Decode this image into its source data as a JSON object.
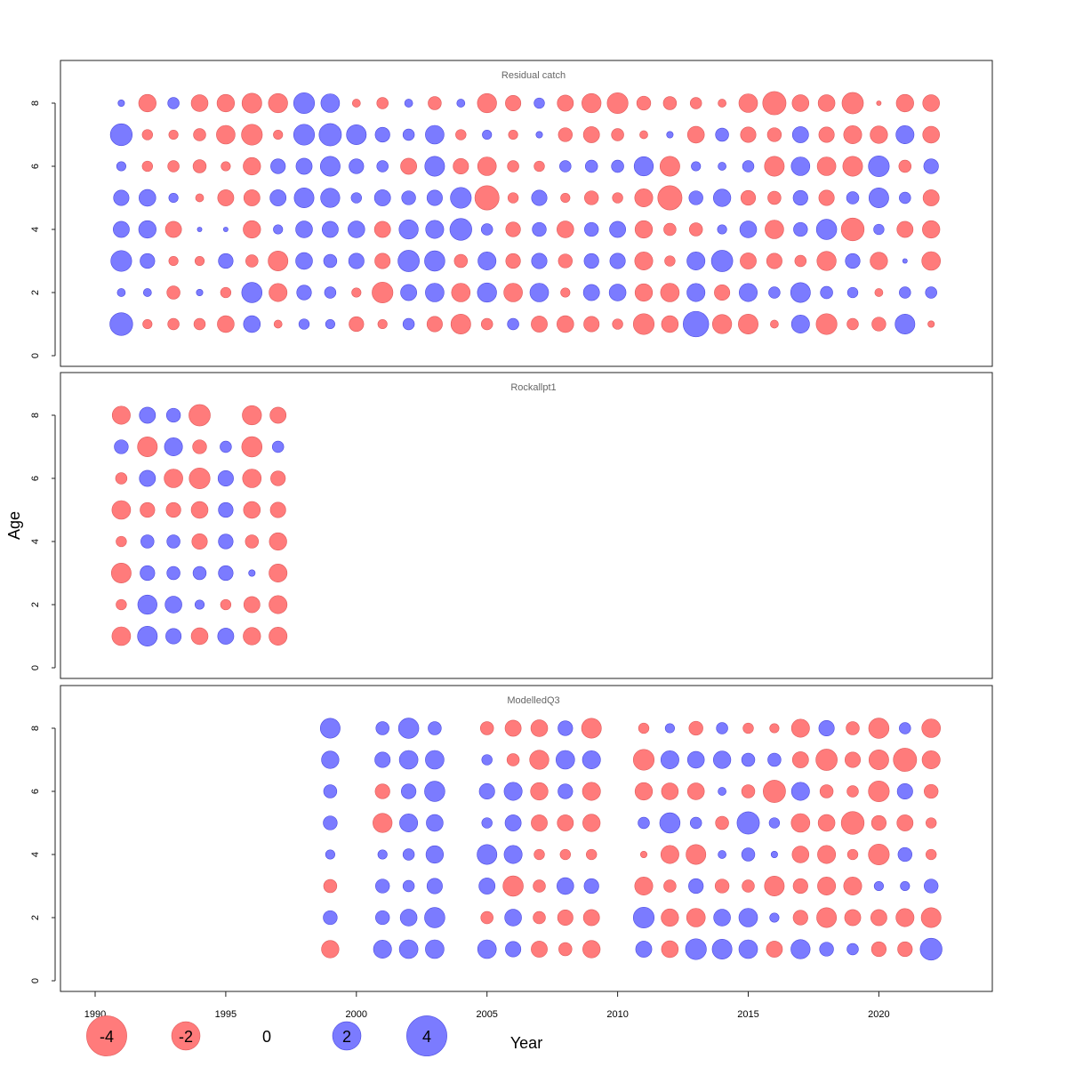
{
  "chart_data": {
    "type": "scatter",
    "subtype": "bubble",
    "xlabel": "Year",
    "ylabel": "Age",
    "xlim": [
      1989,
      2024
    ],
    "ylim": [
      0,
      9
    ],
    "x_ticks": [
      1990,
      1995,
      2000,
      2005,
      2010,
      2015,
      2020
    ],
    "y_ticks": [
      0,
      2,
      4,
      6,
      8
    ],
    "colors": {
      "positive": "#7b7bff",
      "negative": "#ff7b7b",
      "positive_stroke": "#4a4ae0",
      "negative_stroke": "#e05a5a"
    },
    "legend": {
      "position": "bottom",
      "items": [
        {
          "label": "-4",
          "value": -4
        },
        {
          "label": "-2",
          "value": -2
        },
        {
          "label": "0",
          "value": 0
        },
        {
          "label": "2",
          "value": 2
        },
        {
          "label": "4",
          "value": 4
        }
      ]
    },
    "panels": [
      {
        "title": "Residual catch",
        "years": [
          1991,
          1992,
          1993,
          1994,
          1995,
          1996,
          1997,
          1998,
          1999,
          2000,
          2001,
          2002,
          2003,
          2004,
          2005,
          2006,
          2007,
          2008,
          2009,
          2010,
          2011,
          2012,
          2013,
          2014,
          2015,
          2016,
          2017,
          2018,
          2019,
          2020,
          2021,
          2022
        ],
        "ages": [
          1,
          2,
          3,
          4,
          5,
          6,
          7,
          8
        ],
        "residuals": [
          [
            2.4,
            0.3,
            2.0,
            1.2,
            1.1,
            0.4,
            2.2,
            0.2
          ],
          [
            -0.4,
            0.3,
            1.0,
            1.4,
            1.3,
            -0.5,
            -0.5,
            -1.4
          ],
          [
            -0.6,
            -0.8,
            -0.4,
            -1.2,
            0.4,
            -0.6,
            -0.4,
            0.6
          ],
          [
            -0.6,
            0.2,
            -0.4,
            0.1,
            -0.3,
            -0.8,
            -0.7,
            -1.3
          ],
          [
            -1.3,
            -0.5,
            1.0,
            0.1,
            -1.2,
            -0.4,
            -1.6,
            -1.4
          ],
          [
            1.3,
            1.9,
            -0.7,
            -1.4,
            -1.2,
            -1.4,
            -2.0,
            -1.8
          ],
          [
            -0.3,
            -1.5,
            -1.8,
            0.4,
            1.2,
            1.0,
            -0.4,
            -1.7
          ],
          [
            0.5,
            1.0,
            1.3,
            1.3,
            1.8,
            1.2,
            2.0,
            2.0
          ],
          [
            0.4,
            0.6,
            0.8,
            1.2,
            1.7,
            1.8,
            2.3,
            1.6
          ],
          [
            -1.0,
            -0.4,
            1.1,
            1.3,
            0.5,
            1.0,
            1.8,
            -0.3
          ],
          [
            -0.4,
            -2.0,
            -1.1,
            -1.2,
            1.2,
            0.6,
            1.0,
            -0.6
          ],
          [
            0.6,
            1.2,
            2.1,
            1.7,
            0.9,
            -1.2,
            0.6,
            0.3
          ],
          [
            -1.1,
            1.6,
            1.9,
            1.5,
            1.1,
            1.8,
            1.6,
            -0.8
          ],
          [
            -1.8,
            -1.6,
            -0.8,
            2.2,
            2.0,
            -1.1,
            -0.5,
            0.3
          ],
          [
            -0.6,
            1.7,
            1.5,
            0.6,
            -2.7,
            -1.6,
            0.4,
            -1.7
          ],
          [
            0.6,
            -1.6,
            -1.0,
            -1.0,
            -0.5,
            -0.6,
            -0.4,
            -1.1
          ],
          [
            -1.2,
            1.6,
            1.1,
            0.9,
            1.1,
            -0.5,
            0.2,
            0.5
          ],
          [
            -1.3,
            -0.4,
            -0.9,
            -1.3,
            -0.4,
            0.6,
            -0.9,
            -1.2
          ],
          [
            -1.1,
            1.2,
            1.0,
            0.9,
            -0.9,
            0.7,
            -1.2,
            -1.7
          ],
          [
            -0.5,
            1.3,
            1.1,
            1.2,
            -0.5,
            0.7,
            -0.7,
            -2.0
          ],
          [
            -2.0,
            -1.4,
            -1.5,
            -1.4,
            -1.5,
            1.7,
            -0.3,
            -0.9
          ],
          [
            -1.3,
            -1.6,
            -0.5,
            -0.7,
            -2.7,
            -1.8,
            0.2,
            -0.8
          ],
          [
            3.0,
            1.5,
            1.5,
            -0.8,
            0.9,
            0.4,
            -1.3,
            -0.6
          ],
          [
            -1.7,
            -1.1,
            2.1,
            0.4,
            1.4,
            0.3,
            0.8,
            -0.3
          ],
          [
            -1.8,
            1.5,
            -1.2,
            1.3,
            -1.0,
            0.6,
            -1.1,
            -1.6
          ],
          [
            -0.3,
            0.6,
            -1.1,
            -1.6,
            -0.8,
            -1.8,
            -0.9,
            -2.5
          ],
          [
            1.5,
            1.8,
            -0.6,
            0.9,
            1.0,
            1.6,
            1.2,
            -1.3
          ],
          [
            -2.0,
            0.7,
            -1.7,
            1.9,
            -1.1,
            -1.6,
            -1.1,
            -1.3
          ],
          [
            -0.6,
            0.5,
            1.0,
            -2.4,
            0.7,
            -1.8,
            -1.5,
            -2.1
          ],
          [
            -0.9,
            -0.3,
            -1.4,
            0.5,
            1.8,
            2.0,
            -1.4,
            -0.1
          ],
          [
            1.8,
            0.6,
            0.1,
            -1.2,
            0.6,
            -0.7,
            1.5,
            -1.4
          ],
          [
            -0.2,
            0.6,
            -1.6,
            -1.4,
            -1.2,
            1.0,
            -1.3,
            -1.3
          ]
        ]
      },
      {
        "title": "Rockallpt1",
        "years": [
          1991,
          1992,
          1993,
          1994,
          1995,
          1996,
          1997
        ],
        "ages": [
          1,
          2,
          3,
          4,
          5,
          6,
          7,
          8
        ],
        "residuals": [
          [
            -1.6,
            -0.5,
            -1.8,
            -0.5,
            -1.6,
            -0.6,
            0.9,
            -1.5
          ],
          [
            1.8,
            1.7,
            1.0,
            0.8,
            -1.0,
            1.2,
            -1.8,
            1.2
          ],
          [
            1.1,
            1.3,
            0.8,
            0.8,
            -1.0,
            -1.6,
            1.5,
            0.9
          ],
          [
            -1.3,
            0.4,
            0.8,
            -1.1,
            -1.3,
            -2.0,
            -0.9,
            -2.1
          ],
          [
            1.2,
            -0.5,
            1.0,
            1.0,
            1.0,
            1.1,
            0.6,
            null
          ],
          [
            -1.4,
            -1.2,
            0.2,
            -0.8,
            -1.3,
            -1.6,
            -1.9,
            -1.7
          ],
          [
            -1.5,
            -1.5,
            -1.5,
            -1.4,
            -1.1,
            -1.0,
            0.6,
            -1.2
          ]
        ]
      },
      {
        "title": "ModelledQ3",
        "years": [
          1999,
          2001,
          2002,
          2003,
          2005,
          2006,
          2007,
          2008,
          2009,
          2011,
          2012,
          2013,
          2014,
          2015,
          2016,
          2017,
          2018,
          2019,
          2020,
          2021,
          2022
        ],
        "ages": [
          1,
          2,
          3,
          4,
          5,
          6,
          7,
          8
        ],
        "residuals": [
          [
            -1.4,
            0.9,
            -0.8,
            0.4,
            0.9,
            0.8,
            1.4,
            1.8
          ],
          [
            1.5,
            0.9,
            0.9,
            0.4,
            -1.7,
            -1.0,
            1.1,
            0.8
          ],
          [
            1.6,
            1.3,
            0.6,
            0.6,
            1.5,
            1.0,
            1.6,
            1.9
          ],
          [
            1.6,
            1.9,
            1.1,
            1.4,
            1.3,
            1.9,
            1.6,
            0.8
          ],
          [
            1.6,
            -0.7,
            1.2,
            1.8,
            0.5,
            1.1,
            0.5,
            -0.8
          ],
          [
            1.1,
            1.3,
            -1.9,
            1.5,
            1.2,
            1.5,
            -0.7,
            -1.2
          ],
          [
            -1.2,
            -0.7,
            -0.7,
            -0.5,
            -1.2,
            -1.4,
            -1.7,
            -1.3
          ],
          [
            -0.8,
            -1.1,
            1.3,
            -0.5,
            -1.2,
            1.0,
            1.6,
            1.0
          ],
          [
            -1.4,
            -1.2,
            1.0,
            -0.5,
            -1.4,
            -1.5,
            1.5,
            -1.8
          ],
          [
            1.2,
            2.0,
            -1.5,
            -0.2,
            0.6,
            -1.4,
            -2.0,
            -0.5
          ],
          [
            -1.3,
            -1.4,
            -0.7,
            -1.5,
            1.9,
            -1.3,
            1.5,
            0.4
          ],
          [
            2.0,
            -1.6,
            1.0,
            -1.8,
            0.6,
            -1.3,
            1.3,
            -0.9
          ],
          [
            1.8,
            1.3,
            -0.9,
            0.3,
            -0.8,
            0.3,
            1.4,
            0.6
          ],
          [
            1.6,
            1.6,
            -0.7,
            0.8,
            2.3,
            -0.8,
            0.8,
            -0.5
          ],
          [
            -1.2,
            0.4,
            -1.8,
            0.2,
            0.5,
            -2.3,
            0.8,
            -0.4
          ],
          [
            1.7,
            -1.0,
            -1.0,
            -1.3,
            -1.6,
            1.5,
            -1.2,
            -1.5
          ],
          [
            0.9,
            -1.8,
            -1.5,
            -1.5,
            -1.3,
            -0.8,
            -2.1,
            1.1
          ],
          [
            0.6,
            -1.2,
            -1.5,
            -0.5,
            -2.4,
            -0.6,
            -1.1,
            -0.8
          ],
          [
            -1.0,
            -1.2,
            0.4,
            -2.0,
            -1.0,
            -2.0,
            -1.8,
            -1.9
          ],
          [
            -1.0,
            -1.5,
            0.4,
            0.9,
            -1.2,
            1.1,
            -2.5,
            0.6
          ],
          [
            2.2,
            -1.8,
            0.9,
            -0.5,
            -0.5,
            -0.9,
            -1.5,
            -1.6
          ]
        ]
      }
    ]
  }
}
